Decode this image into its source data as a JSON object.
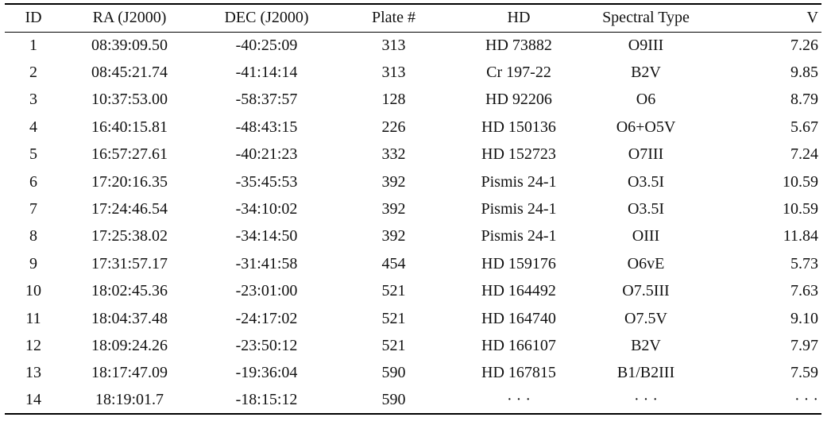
{
  "table": {
    "header": [
      "ID",
      "RA (J2000)",
      "DEC (J2000)",
      "Plate #",
      "HD",
      "Spectral Type",
      "V"
    ],
    "rows": [
      [
        "1",
        "08:39:09.50",
        "-40:25:09",
        "313",
        "HD 73882",
        "O9III",
        "7.26"
      ],
      [
        "2",
        "08:45:21.74",
        "-41:14:14",
        "313",
        "Cr 197-22",
        "B2V",
        "9.85"
      ],
      [
        "3",
        "10:37:53.00",
        "-58:37:57",
        "128",
        "HD 92206",
        "O6",
        "8.79"
      ],
      [
        "4",
        "16:40:15.81",
        "-48:43:15",
        "226",
        "HD 150136",
        "O6+O5V",
        "5.67"
      ],
      [
        "5",
        "16:57:27.61",
        "-40:21:23",
        "332",
        "HD 152723",
        "O7III",
        "7.24"
      ],
      [
        "6",
        "17:20:16.35",
        "-35:45:53",
        "392",
        "Pismis 24-1",
        "O3.5I",
        "10.59"
      ],
      [
        "7",
        "17:24:46.54",
        "-34:10:02",
        "392",
        "Pismis 24-1",
        "O3.5I",
        "10.59"
      ],
      [
        "8",
        "17:25:38.02",
        "-34:14:50",
        "392",
        "Pismis 24-1",
        "OIII",
        "11.84"
      ],
      [
        "9",
        "17:31:57.17",
        "-31:41:58",
        "454",
        "HD 159176",
        "O6vE",
        "5.73"
      ],
      [
        "10",
        "18:02:45.36",
        "-23:01:00",
        "521",
        "HD 164492",
        "O7.5III",
        "7.63"
      ],
      [
        "11",
        "18:04:37.48",
        "-24:17:02",
        "521",
        "HD 164740",
        "O7.5V",
        "9.10"
      ],
      [
        "12",
        "18:09:24.26",
        "-23:50:12",
        "521",
        "HD 166107",
        "B2V",
        "7.97"
      ],
      [
        "13",
        "18:17:47.09",
        "-19:36:04",
        "590",
        "HD 167815",
        "B1/B2III",
        "7.59"
      ],
      [
        "14",
        "18:19:01.7",
        "-18:15:12",
        "590",
        "· · ·",
        "· · ·",
        "· · ·"
      ]
    ]
  }
}
